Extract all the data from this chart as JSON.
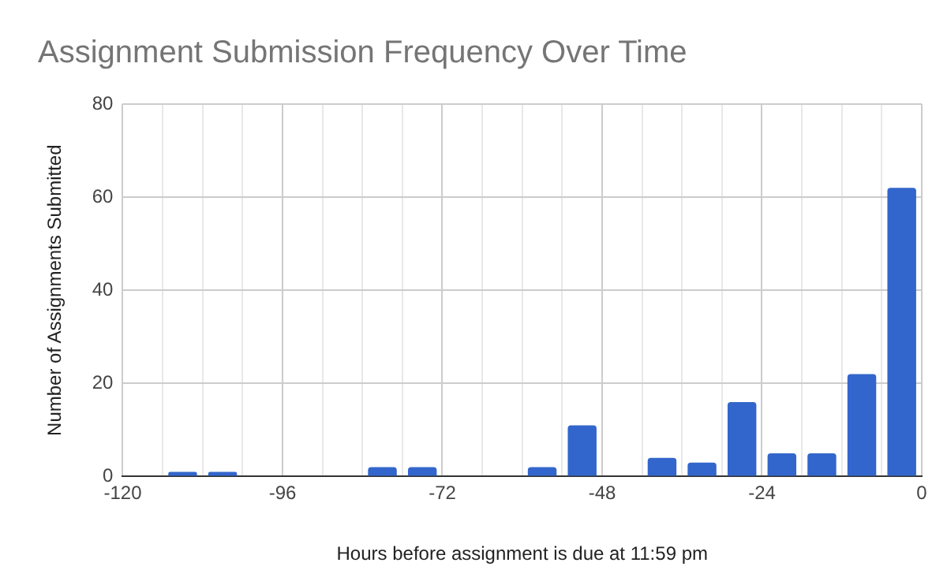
{
  "chart_data": {
    "type": "bar",
    "title": "Assignment Submission Frequency Over Time",
    "xlabel": "Hours before assignment is due at 11:59 pm",
    "ylabel": "Number of Assignments Submitted",
    "x": [
      -111,
      -105,
      -81,
      -75,
      -57,
      -51,
      -39,
      -33,
      -27,
      -21,
      -15,
      -9,
      -3
    ],
    "series": [
      {
        "color": "#3366cc",
        "values": [
          1,
          1,
          2,
          2,
          2,
          11,
          4,
          3,
          16,
          5,
          5,
          22,
          62
        ]
      }
    ],
    "xlim": [
      -120,
      0
    ],
    "xticks": [
      -120,
      {
        "value": -114,
        "label": null
      },
      {
        "value": -108,
        "label": null
      },
      {
        "value": -102,
        "label": null
      },
      -96,
      {
        "value": -90,
        "label": null
      },
      {
        "value": -84,
        "label": null
      },
      {
        "value": -78,
        "label": null
      },
      -72,
      {
        "value": -66,
        "label": null
      },
      {
        "value": -60,
        "label": null
      },
      {
        "value": -54,
        "label": null
      },
      -48,
      {
        "value": -42,
        "label": null
      },
      {
        "value": -36,
        "label": null
      },
      {
        "value": -30,
        "label": null
      },
      -24,
      {
        "value": -18,
        "label": null
      },
      {
        "value": -12,
        "label": null
      },
      {
        "value": -6,
        "label": null
      },
      0
    ],
    "ylim": [
      0,
      80
    ],
    "yticks": [
      0,
      20,
      40,
      60,
      80
    ],
    "grid": true,
    "legend": false
  }
}
